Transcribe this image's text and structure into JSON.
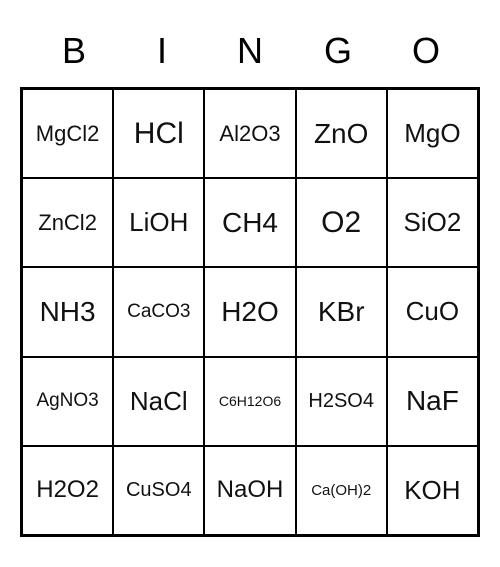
{
  "header": {
    "letters": [
      "B",
      "I",
      "N",
      "G",
      "O"
    ],
    "font_size": 36,
    "color": "#000000"
  },
  "grid": {
    "rows": 5,
    "cols": 5,
    "border_color": "#000000",
    "background_color": "#ffffff",
    "cells": [
      {
        "value": "MgCl2",
        "font_size": 22
      },
      {
        "value": "HCl",
        "font_size": 30
      },
      {
        "value": "Al2O3",
        "font_size": 22
      },
      {
        "value": "ZnO",
        "font_size": 28
      },
      {
        "value": "MgO",
        "font_size": 26
      },
      {
        "value": "ZnCl2",
        "font_size": 22
      },
      {
        "value": "LiOH",
        "font_size": 26
      },
      {
        "value": "CH4",
        "font_size": 28
      },
      {
        "value": "O2",
        "font_size": 30
      },
      {
        "value": "SiO2",
        "font_size": 26
      },
      {
        "value": "NH3",
        "font_size": 28
      },
      {
        "value": "CaCO3",
        "font_size": 19
      },
      {
        "value": "H2O",
        "font_size": 28
      },
      {
        "value": "KBr",
        "font_size": 28
      },
      {
        "value": "CuO",
        "font_size": 26
      },
      {
        "value": "AgNO3",
        "font_size": 19
      },
      {
        "value": "NaCl",
        "font_size": 26
      },
      {
        "value": "C6H12O6",
        "font_size": 14
      },
      {
        "value": "H2SO4",
        "font_size": 20
      },
      {
        "value": "NaF",
        "font_size": 28
      },
      {
        "value": "H2O2",
        "font_size": 24
      },
      {
        "value": "CuSO4",
        "font_size": 20
      },
      {
        "value": "NaOH",
        "font_size": 24
      },
      {
        "value": "Ca(OH)2",
        "font_size": 15
      },
      {
        "value": "KOH",
        "font_size": 26
      }
    ]
  }
}
